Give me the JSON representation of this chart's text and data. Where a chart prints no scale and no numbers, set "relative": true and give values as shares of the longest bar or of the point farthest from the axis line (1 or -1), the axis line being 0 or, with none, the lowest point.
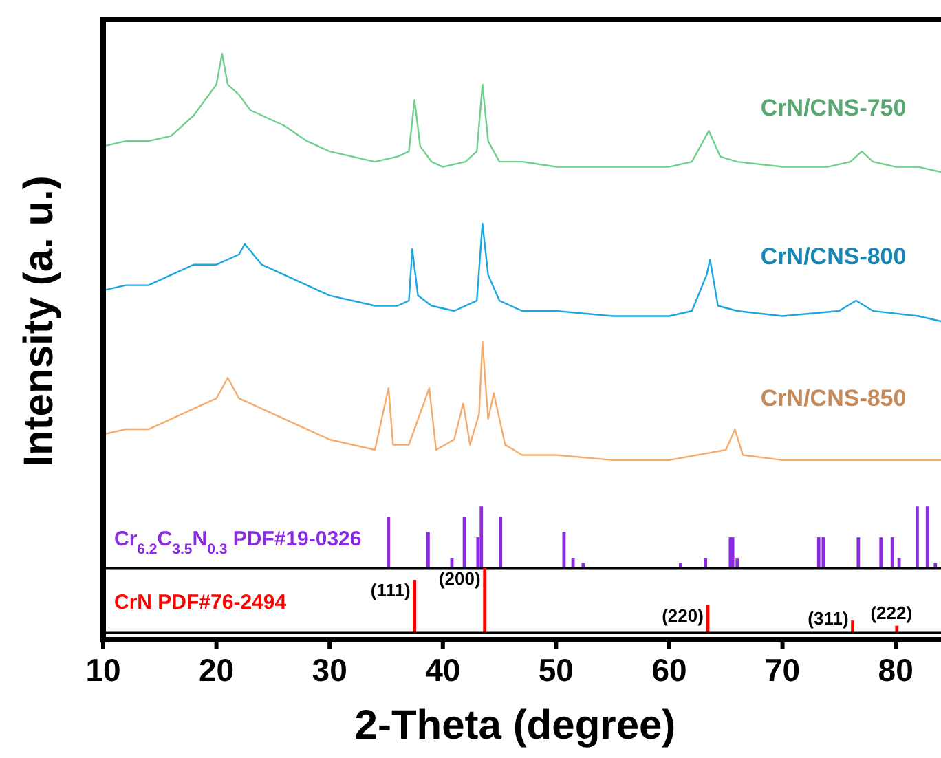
{
  "chart_data": [
    {
      "type": "line",
      "relative": true,
      "xlim": [
        10,
        84
      ],
      "tick_labels": false,
      "ylabel": "Intensity (a. u.)",
      "series": [
        {
          "name": "CrN/CNS-750",
          "color": "#6fd08c",
          "x": [
            10,
            12,
            14,
            16,
            18,
            19,
            20,
            20.5,
            21,
            22,
            23,
            24,
            25,
            26,
            28,
            30,
            32,
            34,
            36,
            37,
            37.5,
            38,
            39,
            40,
            42,
            43,
            43.5,
            44,
            45,
            47,
            50,
            53,
            56,
            60,
            62,
            63.5,
            64.5,
            66,
            70,
            74,
            76,
            77,
            78,
            80,
            82,
            84
          ],
          "values": [
            0.82,
            0.83,
            0.83,
            0.84,
            0.88,
            0.91,
            0.94,
            1.0,
            0.94,
            0.92,
            0.89,
            0.88,
            0.87,
            0.86,
            0.83,
            0.81,
            0.8,
            0.79,
            0.8,
            0.81,
            0.91,
            0.82,
            0.79,
            0.78,
            0.79,
            0.81,
            0.94,
            0.83,
            0.79,
            0.79,
            0.78,
            0.78,
            0.78,
            0.78,
            0.79,
            0.85,
            0.8,
            0.79,
            0.78,
            0.78,
            0.79,
            0.81,
            0.79,
            0.78,
            0.78,
            0.77
          ]
        },
        {
          "name": "CrN/CNS-800",
          "color": "#1ea6e0",
          "x": [
            10,
            12,
            14,
            16,
            18,
            20,
            22,
            22.5,
            24,
            26,
            28,
            30,
            32,
            34,
            36,
            37,
            37.3,
            37.8,
            39,
            41,
            43,
            43.5,
            44,
            45,
            47,
            50,
            55,
            60,
            62,
            63.3,
            63.6,
            64.3,
            66,
            70,
            75,
            76.5,
            78,
            82,
            84
          ],
          "values": [
            0.54,
            0.55,
            0.55,
            0.57,
            0.59,
            0.59,
            0.61,
            0.63,
            0.59,
            0.57,
            0.55,
            0.53,
            0.52,
            0.51,
            0.51,
            0.52,
            0.62,
            0.53,
            0.51,
            0.5,
            0.52,
            0.67,
            0.57,
            0.52,
            0.5,
            0.5,
            0.49,
            0.49,
            0.5,
            0.57,
            0.6,
            0.51,
            0.5,
            0.49,
            0.5,
            0.52,
            0.5,
            0.49,
            0.48
          ]
        },
        {
          "name": "CrN/CNS-850",
          "color": "#f3ab6e",
          "x": [
            10,
            12,
            14,
            16,
            18,
            20,
            21,
            22,
            24,
            26,
            28,
            30,
            32,
            34,
            35.2,
            35.6,
            37,
            38.8,
            39.4,
            41,
            41.8,
            42.4,
            43.2,
            43.5,
            44,
            44.5,
            45.5,
            47,
            50,
            55,
            60,
            65,
            65.8,
            66.5,
            70,
            75,
            80,
            84
          ],
          "values": [
            0.26,
            0.27,
            0.27,
            0.29,
            0.31,
            0.33,
            0.37,
            0.33,
            0.31,
            0.29,
            0.27,
            0.25,
            0.24,
            0.23,
            0.35,
            0.24,
            0.24,
            0.35,
            0.23,
            0.25,
            0.32,
            0.24,
            0.3,
            0.44,
            0.29,
            0.34,
            0.24,
            0.22,
            0.22,
            0.21,
            0.21,
            0.23,
            0.27,
            0.22,
            0.21,
            0.21,
            0.21,
            0.21
          ]
        },
        {
          "name": "Cr$_{6.2}$C$_{3.5}$N$_{0.3}$ PDF#19-0326",
          "type": "bar",
          "color": "#8a2be2",
          "x": [
            35.2,
            38.7,
            40.8,
            41.9,
            43.1,
            43.4,
            45.1,
            50.7,
            51.5,
            52.4,
            61.0,
            63.2,
            65.4,
            65.6,
            66.0,
            73.2,
            73.6,
            76.7,
            78.7,
            79.7,
            80.3,
            81.9,
            82.8,
            83.5
          ],
          "values": [
            0.1,
            0.07,
            0.02,
            0.1,
            0.06,
            0.12,
            0.1,
            0.07,
            0.02,
            0.01,
            0.01,
            0.02,
            0.06,
            0.06,
            0.02,
            0.06,
            0.06,
            0.06,
            0.06,
            0.06,
            0.02,
            0.12,
            0.12,
            0.01
          ]
        }
      ]
    },
    {
      "type": "bar",
      "relative": true,
      "xlim": [
        10,
        84
      ],
      "xticks": [
        10,
        20,
        30,
        40,
        50,
        60,
        70,
        80
      ],
      "tick_labels": "x",
      "xlabel": "2-Theta (degree)",
      "series": [
        {
          "name": "CrN PDF#76-2494",
          "color": "#ff0000",
          "x": [
            37.5,
            43.7,
            63.4,
            76.2,
            80.1
          ],
          "values": [
            0.82,
            1.0,
            0.43,
            0.19,
            0.11
          ]
        }
      ],
      "annotations": [
        {
          "text": "(111)",
          "x": 37.5,
          "y": 0.82
        },
        {
          "text": "(200)",
          "x": 43.7,
          "y": 1.0
        },
        {
          "text": "(220)",
          "x": 63.4,
          "y": 0.43
        },
        {
          "text": "(311)",
          "x": 76.2,
          "y": 0.19
        },
        {
          "text": "(222)",
          "x": 80.1,
          "y": 0.11
        }
      ]
    }
  ]
}
